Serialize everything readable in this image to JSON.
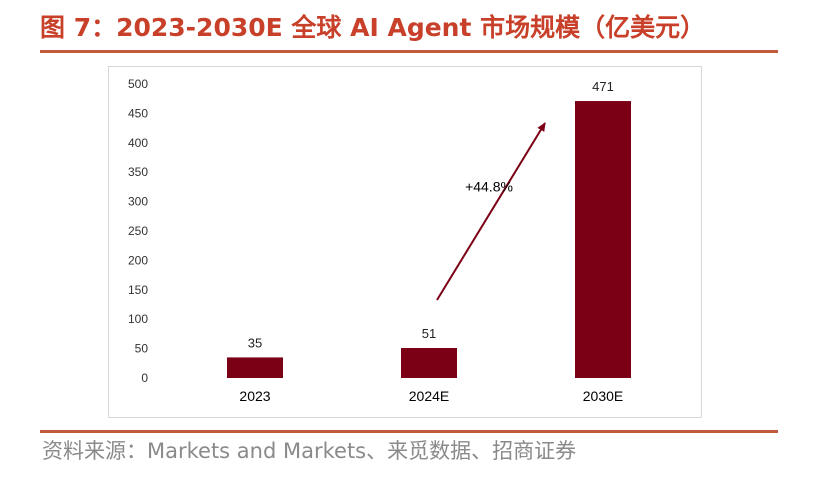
{
  "header": {
    "title": "图 7：2023-2030E 全球 AI Agent 市场规模（亿美元）"
  },
  "footer": {
    "source": "资料来源：Markets and Markets、来觅数据、招商证券"
  },
  "colors": {
    "title": "#c8402a",
    "rule": "#c25a3c",
    "bar": "#7b0015",
    "source": "#8a8a8a"
  },
  "chart_data": {
    "type": "bar",
    "title": "",
    "xlabel": "",
    "ylabel": "",
    "categories": [
      "2023",
      "2024E",
      "2030E"
    ],
    "values": [
      35,
      51,
      471
    ],
    "data_labels": [
      "35",
      "51",
      "471"
    ],
    "ylim": [
      0,
      500
    ],
    "yticks": [
      0,
      50,
      100,
      150,
      200,
      250,
      300,
      350,
      400,
      450,
      500
    ],
    "grid": false,
    "legend": "none",
    "annotation": {
      "text": "+44.8%",
      "arrow_from_category": "2024E",
      "arrow_to_category": "2030E"
    }
  }
}
